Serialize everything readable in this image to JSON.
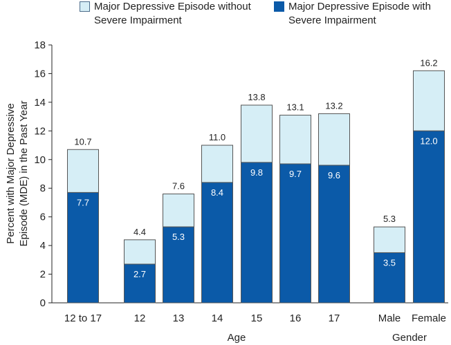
{
  "legend": [
    {
      "label": "Major Depressive Episode without Severe Impairment",
      "color": "#d6eef6"
    },
    {
      "label": "Major Depressive Episode with Severe Impairment",
      "color": "#0b5aa8"
    }
  ],
  "chart_data": {
    "type": "bar",
    "stacked": true,
    "title": "",
    "ylabel": "Percent with Major Depressive Episode (MDE) in the Past Year",
    "ylim": [
      0,
      18
    ],
    "yticks": [
      0,
      2,
      4,
      6,
      8,
      10,
      12,
      14,
      16,
      18
    ],
    "categories": [
      "12 to 17",
      "12",
      "13",
      "14",
      "15",
      "16",
      "17",
      "Male",
      "Female"
    ],
    "groups": [
      {
        "label": "Age",
        "categories": [
          "12",
          "13",
          "14",
          "15",
          "16",
          "17"
        ]
      },
      {
        "label": "Gender",
        "categories": [
          "Male",
          "Female"
        ]
      }
    ],
    "series": [
      {
        "name": "Major Depressive Episode with Severe Impairment",
        "values": [
          7.7,
          2.7,
          5.3,
          8.4,
          9.8,
          9.7,
          9.6,
          3.5,
          12.0
        ],
        "labels": [
          "7.7",
          "2.7",
          "5.3",
          "8.4",
          "9.8",
          "9.7",
          "9.6",
          "3.5",
          "12.0"
        ]
      },
      {
        "name": "Major Depressive Episode without Severe Impairment",
        "values": [
          3.0,
          1.7,
          2.3,
          2.6,
          4.0,
          3.4,
          3.6,
          1.8,
          4.2
        ]
      }
    ],
    "totals": [
      10.7,
      4.4,
      7.6,
      11.0,
      13.8,
      13.1,
      13.2,
      5.3,
      16.2
    ],
    "total_labels": [
      "10.7",
      "4.4",
      "7.6",
      "11.0",
      "13.8",
      "13.1",
      "13.2",
      "5.3",
      "16.2"
    ]
  }
}
